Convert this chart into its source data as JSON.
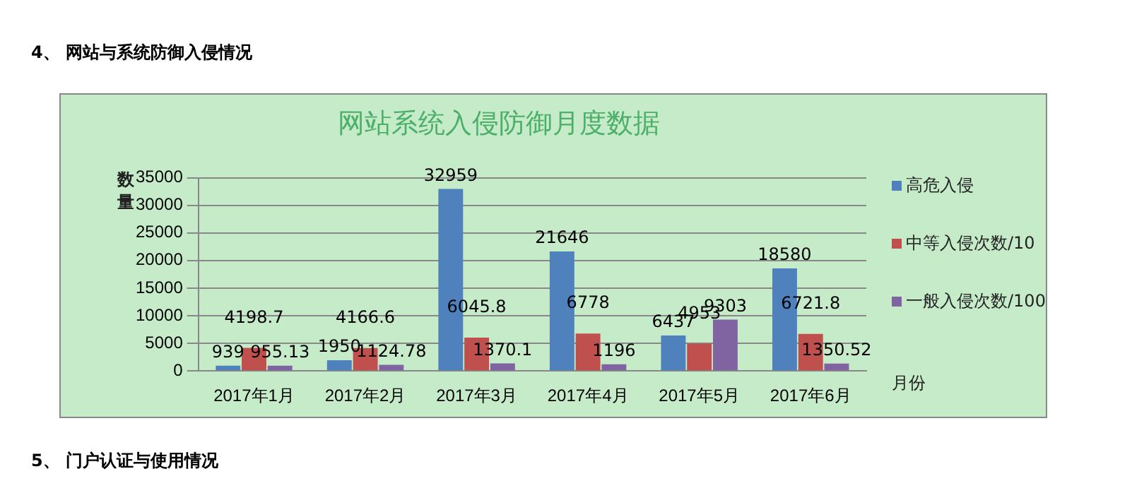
{
  "chart_data": {
    "type": "bar",
    "title": "网站系统入侵防御月度数据",
    "xlabel": "月份",
    "ylabel": "数量",
    "annotations": [
      "4、 网站与系统防御入侵情况",
      "5、 门户认证与使用情况"
    ],
    "categories": [
      "2017年1月",
      "2017年2月",
      "2017年3月",
      "2017年4月",
      "2017年5月",
      "2017年6月"
    ],
    "series": [
      {
        "name": "高危入侵",
        "color": "#4f81bd",
        "values": [
          939,
          1950,
          32959,
          21646,
          6437,
          18580
        ]
      },
      {
        "name": "中等入侵次数/10",
        "color": "#c0504d",
        "values": [
          4198.7,
          4166.6,
          6045.8,
          6778,
          4953,
          6721.8
        ]
      },
      {
        "name": "一般入侵次数/100",
        "color": "#8064a2",
        "values": [
          955.13,
          1124.78,
          1370.1,
          1196,
          9303,
          1350.52
        ]
      }
    ],
    "ylim": [
      0,
      35000
    ],
    "yticks": [
      0,
      5000,
      10000,
      15000,
      20000,
      25000,
      30000,
      35000
    ],
    "grid": "y",
    "legend": "right",
    "data_labels": true
  }
}
